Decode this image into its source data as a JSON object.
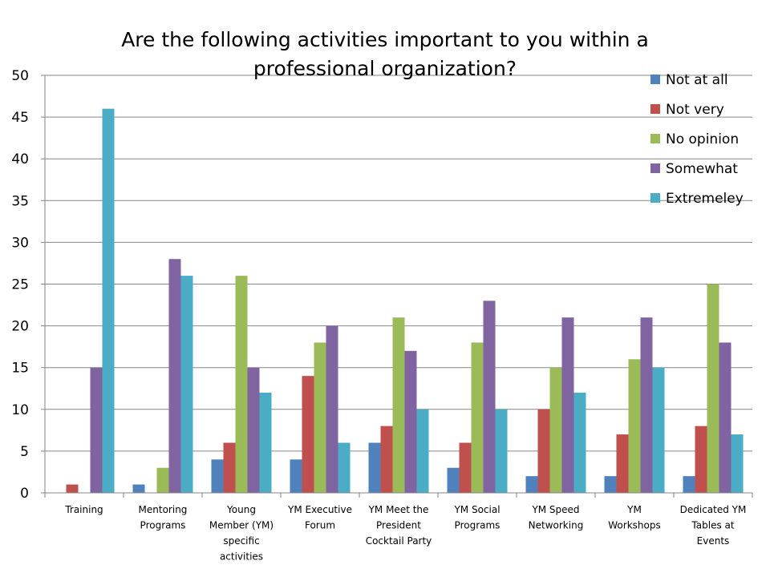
{
  "chart_data": {
    "type": "bar",
    "title_lines": [
      "Are the following activities important to you within a",
      "professional organization?"
    ],
    "categories": [
      [
        "Training"
      ],
      [
        "Mentoring",
        "Programs"
      ],
      [
        "Young",
        "Member (YM)",
        "specific",
        "activities"
      ],
      [
        "YM Executive",
        "Forum"
      ],
      [
        "YM Meet the",
        "President",
        "Cocktail Party"
      ],
      [
        "YM Social",
        "Programs"
      ],
      [
        "YM Speed",
        "Networking"
      ],
      [
        "YM",
        "Workshops"
      ],
      [
        "Dedicated YM",
        "Tables at",
        "Events"
      ]
    ],
    "series": [
      {
        "name": "Not at all",
        "color": "#4F81BD",
        "values": [
          0,
          1,
          4,
          4,
          6,
          3,
          2,
          2,
          2
        ]
      },
      {
        "name": "Not very",
        "color": "#C0504D",
        "values": [
          1,
          0,
          6,
          14,
          8,
          6,
          10,
          7,
          8
        ]
      },
      {
        "name": "No opinion",
        "color": "#9BBB59",
        "values": [
          0,
          3,
          26,
          18,
          21,
          18,
          15,
          16,
          25
        ]
      },
      {
        "name": "Somewhat",
        "color": "#8064A2",
        "values": [
          15,
          28,
          15,
          20,
          17,
          23,
          21,
          21,
          18
        ]
      },
      {
        "name": "Extremeley",
        "color": "#4BACC6",
        "values": [
          46,
          26,
          12,
          6,
          10,
          10,
          12,
          15,
          7
        ]
      }
    ],
    "ylim": [
      0,
      50
    ],
    "yticks": [
      0,
      5,
      10,
      15,
      20,
      25,
      30,
      35,
      40,
      45,
      50
    ],
    "grid": true,
    "legend_position": "top-right"
  }
}
